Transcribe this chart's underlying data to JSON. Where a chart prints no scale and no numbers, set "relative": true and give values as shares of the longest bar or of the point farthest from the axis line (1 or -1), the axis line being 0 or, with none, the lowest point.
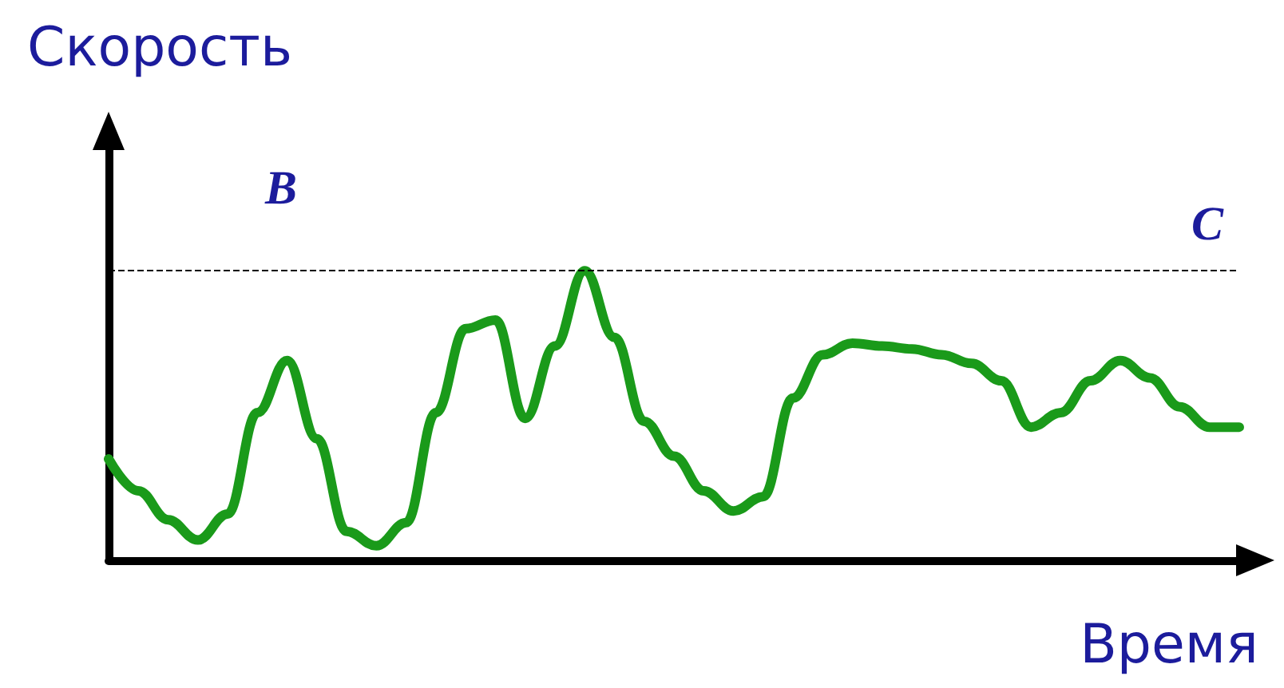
{
  "chart_data": {
    "type": "line",
    "title": "Скорость",
    "xlabel": "Время",
    "annotations": [
      "B"
    ],
    "relative": true,
    "marker": "none",
    "line_style": "solid",
    "categories": [
      null,
      null,
      null,
      null,
      null,
      null,
      null,
      null,
      null,
      null,
      null,
      null,
      null,
      null,
      null,
      null,
      null,
      null,
      null,
      null,
      null,
      null,
      null,
      null,
      null,
      null,
      null,
      null,
      null,
      null,
      null,
      null,
      null,
      null,
      null,
      null,
      null,
      null,
      null
    ],
    "series": [
      {
        "color": "#1a9a1a",
        "values": [
          0.35,
          0.24,
          0.14,
          0.07,
          0.16,
          0.51,
          0.69,
          0.42,
          0.1,
          0.05,
          0.13,
          0.51,
          0.8,
          0.83,
          0.49,
          0.74,
          1.0,
          0.77,
          0.48,
          0.36,
          0.24,
          0.17,
          0.22,
          0.56,
          0.71,
          0.75,
          0.74,
          0.73,
          0.71,
          0.68,
          0.62,
          0.46,
          0.51,
          0.62,
          0.69,
          0.63,
          0.53,
          0.46,
          0.46
        ]
      }
    ],
    "ref_lines": [
      {
        "axis": "y",
        "value": 1,
        "label": "C",
        "color": "#000000",
        "line_style": "dashed"
      }
    ]
  }
}
